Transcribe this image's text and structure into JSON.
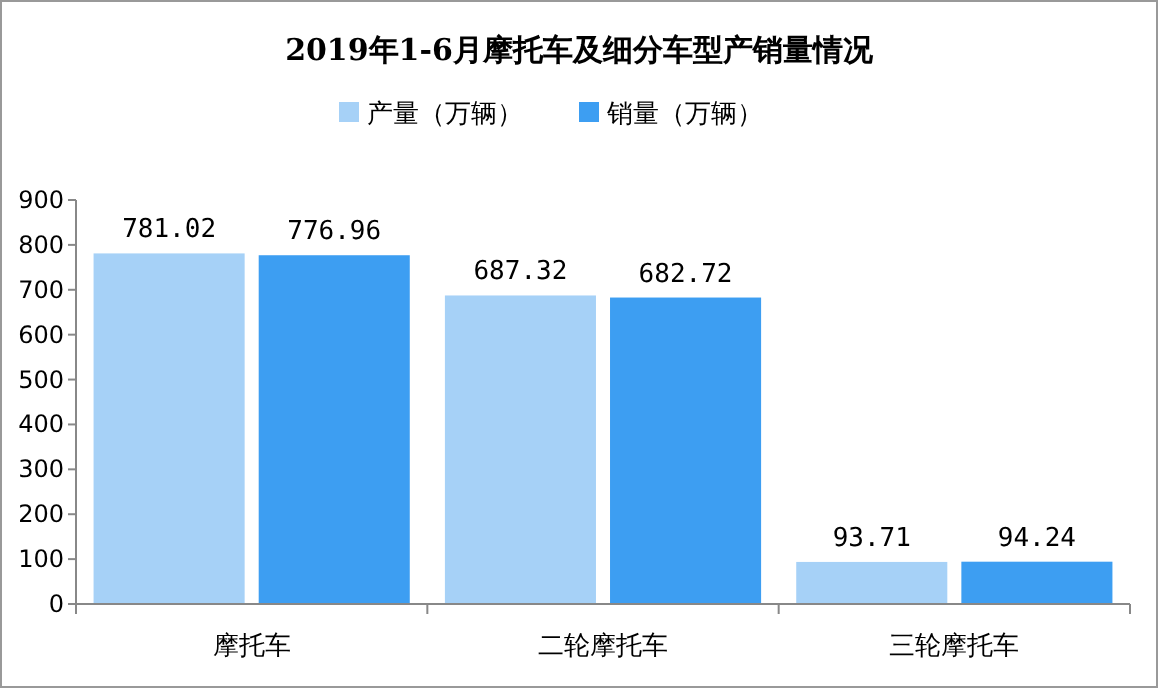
{
  "chart_data": {
    "type": "bar",
    "title": "2019年1-6月摩托车及细分车型产销量情况",
    "categories": [
      "摩托车",
      "二轮摩托车",
      "三轮摩托车"
    ],
    "series": [
      {
        "name": "产量（万辆）",
        "color": "#a6d1f7",
        "values": [
          781.02,
          687.32,
          93.71
        ]
      },
      {
        "name": "销量（万辆）",
        "color": "#3d9ef2",
        "values": [
          776.96,
          682.72,
          94.24
        ]
      }
    ],
    "ylim": [
      0,
      900
    ],
    "yticks": [
      0,
      100,
      200,
      300,
      400,
      500,
      600,
      700,
      800,
      900
    ],
    "grid": false,
    "legend": "top",
    "data_labels": true
  }
}
